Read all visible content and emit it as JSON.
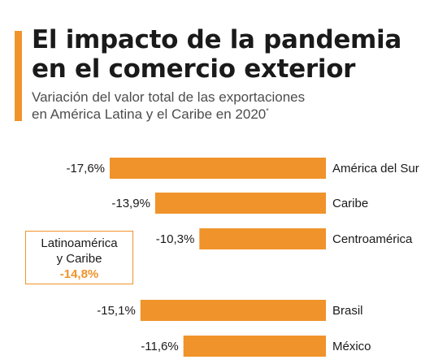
{
  "header": {
    "title_line1": "El impacto de la pandemia",
    "title_line2": "en el comercio exterior",
    "subtitle_line1": "Variación del valor total de las exportaciones",
    "subtitle_line2": "en América Latina y el Caribe en 2020",
    "subtitle_note_mark": "*"
  },
  "summary": {
    "label_line1": "Latinoamérica",
    "label_line2": "y Caribe",
    "value": "-14,8%"
  },
  "colors": {
    "accent": "#f0932b",
    "text": "#1a1a1a"
  },
  "chart_data": {
    "type": "bar",
    "orientation": "horizontal",
    "categories": [
      "América del Sur",
      "Caribe",
      "Centroamérica",
      "Brasil",
      "México"
    ],
    "values": [
      -17.6,
      -13.9,
      -10.3,
      -15.1,
      -11.6
    ],
    "value_labels": [
      "-17,6%",
      "-13,9%",
      "-10,3%",
      "-15,1%",
      "-11,6%"
    ],
    "unit": "%",
    "xlim": [
      -17.6,
      0
    ],
    "grid": false
  }
}
